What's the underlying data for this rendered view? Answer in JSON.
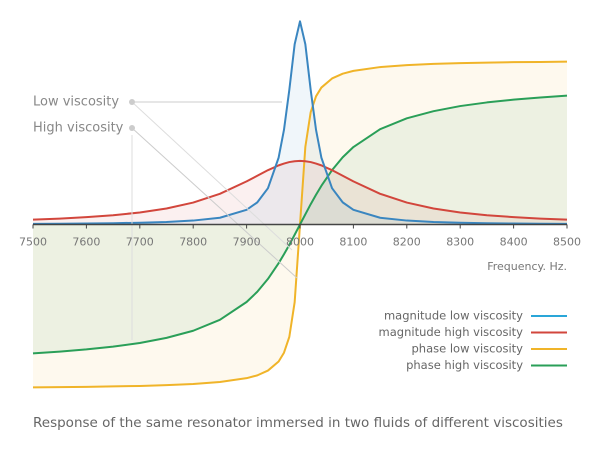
{
  "chart_data": {
    "type": "line",
    "caption": "Response of the same resonator immersed in two fluids of different viscosities",
    "xlabel": "Frequency. Hz.",
    "annotations": [
      "Low viscosity",
      "High viscosity"
    ],
    "x": [
      7500,
      7550,
      7600,
      7650,
      7700,
      7750,
      7800,
      7850,
      7900,
      7920,
      7940,
      7960,
      7970,
      7980,
      7990,
      8000,
      8010,
      8020,
      8030,
      8040,
      8060,
      8080,
      8100,
      8150,
      8200,
      8250,
      8300,
      8350,
      8400,
      8450,
      8500
    ],
    "xlim": [
      7500,
      8500
    ],
    "xticks": [
      7500,
      7600,
      7700,
      7800,
      7900,
      8000,
      8100,
      8200,
      8300,
      8400,
      8500
    ],
    "ylim": [
      -1.05,
      1.25
    ],
    "series": [
      {
        "name": "magnitude low viscosity",
        "color": "#3a86c0",
        "legend_color": "#2aa6d8",
        "values": [
          0.004,
          0.005,
          0.006,
          0.008,
          0.011,
          0.015,
          0.024,
          0.041,
          0.089,
          0.134,
          0.22,
          0.405,
          0.573,
          0.815,
          1.091,
          1.23,
          1.091,
          0.815,
          0.573,
          0.405,
          0.22,
          0.134,
          0.089,
          0.041,
          0.024,
          0.015,
          0.011,
          0.008,
          0.006,
          0.005,
          0.004
        ]
      },
      {
        "name": "magnitude high viscosity",
        "color": "#d2463c",
        "legend_color": "#d2463c",
        "values": [
          0.03,
          0.036,
          0.045,
          0.056,
          0.073,
          0.097,
          0.133,
          0.186,
          0.261,
          0.295,
          0.329,
          0.358,
          0.369,
          0.378,
          0.383,
          0.385,
          0.383,
          0.378,
          0.369,
          0.358,
          0.329,
          0.295,
          0.261,
          0.186,
          0.133,
          0.097,
          0.073,
          0.056,
          0.045,
          0.036,
          0.03
        ]
      },
      {
        "name": "phase low viscosity",
        "color": "#f0b429",
        "legend_color": "#f0b429",
        "values": [
          -0.986,
          -0.984,
          -0.983,
          -0.98,
          -0.977,
          -0.972,
          -0.965,
          -0.953,
          -0.93,
          -0.913,
          -0.884,
          -0.829,
          -0.776,
          -0.68,
          -0.47,
          0,
          0.47,
          0.68,
          0.776,
          0.829,
          0.884,
          0.913,
          0.93,
          0.953,
          0.965,
          0.972,
          0.977,
          0.98,
          0.983,
          0.984,
          0.986
        ]
      },
      {
        "name": "phase high viscosity",
        "color": "#2a9f58",
        "legend_color": "#2a9f58",
        "values": [
          -0.78,
          -0.769,
          -0.756,
          -0.739,
          -0.717,
          -0.686,
          -0.643,
          -0.577,
          -0.469,
          -0.407,
          -0.329,
          -0.234,
          -0.18,
          -0.123,
          -0.062,
          0,
          0.062,
          0.123,
          0.18,
          0.234,
          0.329,
          0.407,
          0.469,
          0.577,
          0.643,
          0.686,
          0.717,
          0.739,
          0.756,
          0.769,
          0.78
        ]
      }
    ]
  }
}
